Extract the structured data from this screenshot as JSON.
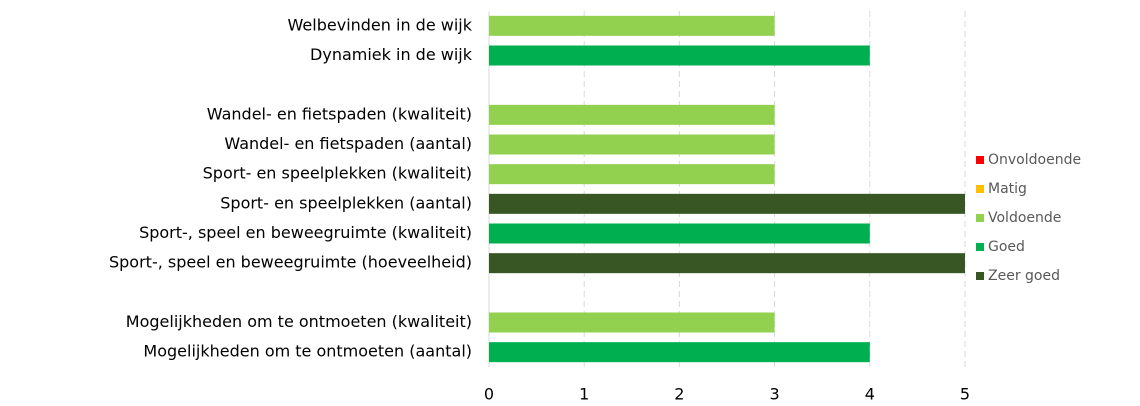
{
  "chart_data": {
    "type": "bar",
    "orientation": "horizontal",
    "categories": [
      "Welbevinden in de wijk",
      "Dynamiek in de wijk",
      null,
      "Wandel- en fietspaden (kwaliteit)",
      "Wandel- en fietspaden (aantal)",
      "Sport- en speelplekken (kwaliteit)",
      "Sport- en speelplekken (aantal)",
      "Sport-, speel en beweegruimte (kwaliteit)",
      "Sport-, speel en beweegruimte (hoeveelheid)",
      null,
      "Mogelijkheden om te ontmoeten (kwaliteit)",
      "Mogelijkheden om te ontmoeten (aantal)"
    ],
    "series": [
      {
        "name": "Onvoldoende",
        "color": "#ff0000",
        "values": [
          null,
          null,
          null,
          null,
          null,
          null,
          null,
          null,
          null,
          null,
          null,
          null
        ]
      },
      {
        "name": "Matig",
        "color": "#ffc000",
        "values": [
          null,
          null,
          null,
          null,
          null,
          null,
          null,
          null,
          null,
          null,
          null,
          null
        ]
      },
      {
        "name": "Voldoende",
        "color": "#92d050",
        "values": [
          3,
          null,
          null,
          3,
          3,
          3,
          null,
          null,
          null,
          null,
          3,
          null
        ]
      },
      {
        "name": "Goed",
        "color": "#00b050",
        "values": [
          null,
          4,
          null,
          null,
          null,
          null,
          null,
          4,
          null,
          null,
          null,
          4
        ]
      },
      {
        "name": "Zeer goed",
        "color": "#375623",
        "values": [
          null,
          null,
          null,
          null,
          null,
          null,
          5,
          null,
          5,
          null,
          null,
          null
        ]
      }
    ],
    "xlim": [
      0,
      5
    ],
    "xticks": [
      0,
      1,
      2,
      3,
      4,
      5
    ],
    "grid": true,
    "legend": "right"
  }
}
